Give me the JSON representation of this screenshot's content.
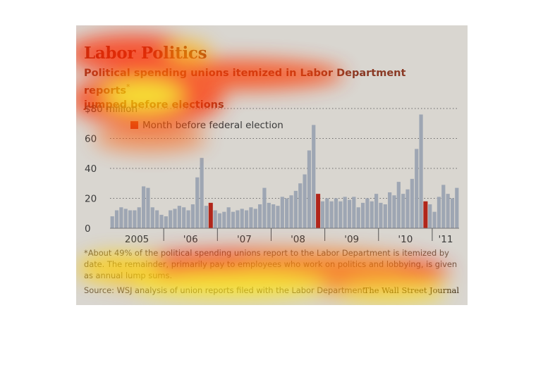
{
  "header": {
    "title": "Labor Politics",
    "subtitle": "Political spending unions itemized in Labor Department reports",
    "subtitle_marker": "*",
    "subtitle_line2": "jumped before elections"
  },
  "footer": {
    "footnote": "*About 49% of the political spending unions report to the Labor Department is itemized by date. The remainder, primarily pay to employees who work on politics and lobbying, is given as annual lump sums.",
    "source": "Source: WSJ analysis of union reports filed with the Labor Department",
    "credit": "The Wall Street Journal"
  },
  "colors": {
    "bar": "#9ea6b3",
    "highlight": "#b1261b",
    "legend_square": "#c0311f",
    "axis_text": "#3a3a3a",
    "gridline": "#6a6a6a"
  },
  "chart_data": {
    "type": "bar",
    "xlabel": "",
    "ylabel": "",
    "ylim": [
      0,
      80
    ],
    "yticks": [
      0,
      20,
      40,
      60,
      80
    ],
    "ytick_labels": [
      "0",
      "20",
      "40",
      "60",
      "$80 million"
    ],
    "grid": true,
    "legend": {
      "label": "Month before federal election",
      "placement": "top-left"
    },
    "x_labels": [
      "2005",
      "'06",
      "'07",
      "'08",
      "'09",
      "'10",
      "'11"
    ],
    "highlight_indices": [
      22,
      46,
      70
    ],
    "values": [
      8,
      12,
      14,
      13,
      12,
      12,
      14,
      28,
      27,
      14,
      12,
      9,
      8,
      12,
      13,
      15,
      14,
      12,
      16,
      34,
      47,
      15,
      17,
      12,
      10,
      11,
      14,
      11,
      12,
      13,
      12,
      14,
      13,
      16,
      27,
      17,
      16,
      15,
      21,
      20,
      22,
      25,
      30,
      36,
      52,
      69,
      23,
      18,
      20,
      18,
      20,
      18,
      21,
      19,
      21,
      14,
      17,
      20,
      18,
      23,
      17,
      16,
      24,
      22,
      31,
      23,
      26,
      33,
      53,
      76,
      18,
      16,
      11,
      21,
      29,
      23,
      20,
      27
    ]
  }
}
